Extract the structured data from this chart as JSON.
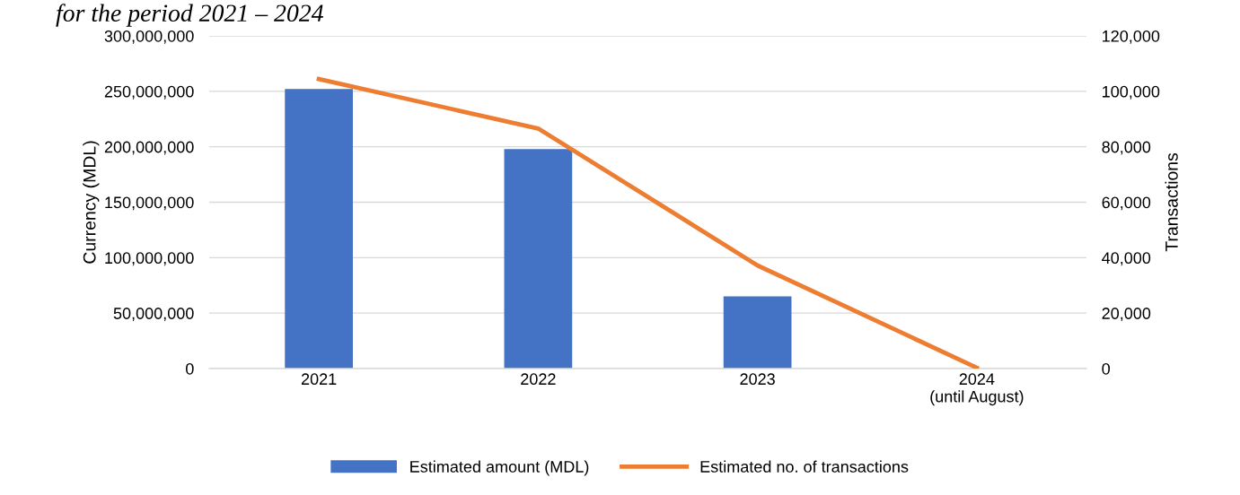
{
  "chart_data": {
    "type": "bar",
    "title": "for the period 2021 – 2024",
    "categories": [
      "2021",
      "2022",
      "2023",
      "2024\n(until August)"
    ],
    "series": [
      {
        "name": "Estimated amount (MDL)",
        "color": "#4472c4",
        "values": [
          252000000,
          198000000,
          65000000,
          0
        ]
      },
      {
        "name": "Estimated no. of transactions",
        "type": "line",
        "axis": "y2",
        "color": "#ed7d31",
        "marker": "none",
        "values": [
          104400,
          86600,
          37200,
          300
        ]
      }
    ],
    "ylabel": "Currency (MDL)",
    "y2label": "Transactions",
    "ylim": [
      0,
      300000000
    ],
    "yticks": [
      {
        "value": 0,
        "label": "0"
      },
      {
        "value": 50000000,
        "label": "50,000,000"
      },
      {
        "value": 100000000,
        "label": "100,000,000"
      },
      {
        "value": 150000000,
        "label": "150,000,000"
      },
      {
        "value": 200000000,
        "label": "200,000,000"
      },
      {
        "value": 250000000,
        "label": "250,000,000"
      },
      {
        "value": 300000000,
        "label": "300,000,000"
      }
    ],
    "y2lim": [
      0,
      120000
    ],
    "y2ticks": [
      {
        "value": 0,
        "label": "0"
      },
      {
        "value": 20000,
        "label": "20,000"
      },
      {
        "value": 40000,
        "label": "40,000"
      },
      {
        "value": 60000,
        "label": "60,000"
      },
      {
        "value": 80000,
        "label": "80,000"
      },
      {
        "value": 100000,
        "label": "100,000"
      },
      {
        "value": 120000,
        "label": "120,000"
      }
    ],
    "grid": "y",
    "legend": "bottom"
  }
}
